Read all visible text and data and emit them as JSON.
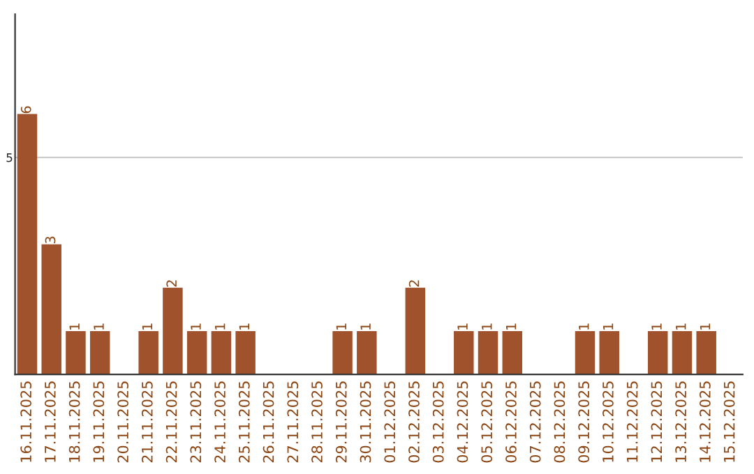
{
  "chart_data": {
    "type": "bar",
    "categories": [
      "16.11.2025",
      "17.11.2025",
      "18.11.2025",
      "19.11.2025",
      "20.11.2025",
      "21.11.2025",
      "22.11.2025",
      "23.11.2025",
      "24.11.2025",
      "25.11.2025",
      "26.11.2025",
      "27.11.2025",
      "28.11.2025",
      "29.11.2025",
      "30.11.2025",
      "01.12.2025",
      "02.12.2025",
      "03.12.2025",
      "04.12.2025",
      "05.12.2025",
      "06.12.2025",
      "07.12.2025",
      "08.12.2025",
      "09.12.2025",
      "10.12.2025",
      "11.12.2025",
      "12.12.2025",
      "13.12.2025",
      "14.12.2025",
      "15.12.2025"
    ],
    "values": [
      6,
      3,
      1,
      1,
      0,
      1,
      2,
      1,
      1,
      1,
      0,
      0,
      0,
      1,
      1,
      0,
      2,
      0,
      1,
      1,
      1,
      0,
      0,
      1,
      1,
      0,
      1,
      1,
      1,
      0
    ],
    "value_labels": [
      "6",
      "3",
      "1",
      "1",
      null,
      "1",
      "2",
      "1",
      "1",
      "1",
      null,
      null,
      null,
      "1",
      "1",
      null,
      "2",
      null,
      "1",
      "1",
      "1",
      null,
      null,
      "1",
      "1",
      null,
      "1",
      "1",
      "1",
      null
    ],
    "color": "#a0522d",
    "ylim": [
      0,
      8.3
    ],
    "yticks": [
      5
    ],
    "grid": "y",
    "legend": false
  }
}
